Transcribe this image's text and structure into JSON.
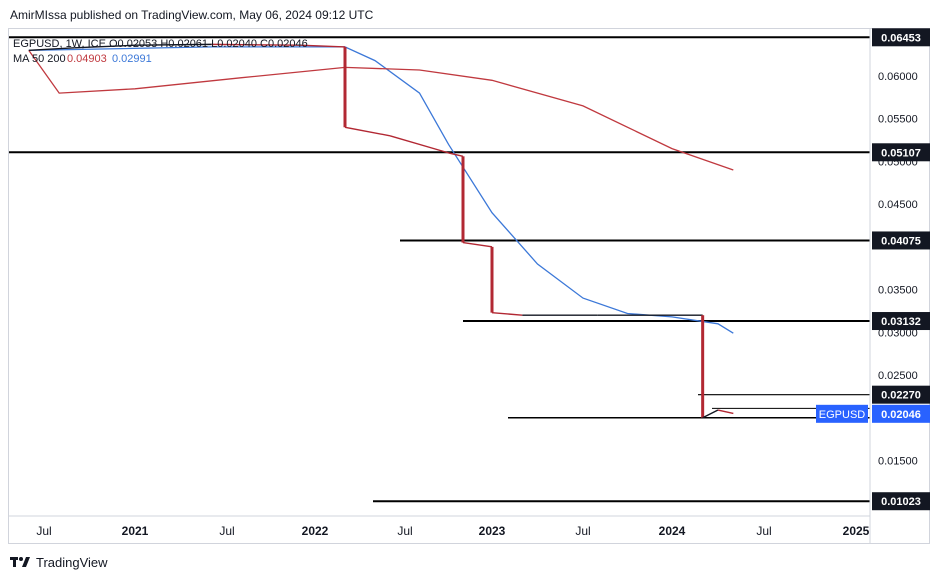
{
  "header": {
    "published_text": "AmirMIssa published on TradingView.com, May 06, 2024 09:12 UTC"
  },
  "footer": {
    "brand": "TradingView",
    "logo_icon": "tradingview-logo-icon"
  },
  "legend": {
    "symbol_line": "EGPUSD, 1W, ICE  O0.02053  H0.02061  L0.02040  C0.02046",
    "ma_label": "MA 50 200",
    "ma_values": [
      "0.04903",
      "0.02991"
    ]
  },
  "colors": {
    "up": "#2962ff",
    "down": "#b22833",
    "ma50": "#3c78d8",
    "ma200": "#c0393f",
    "price_tag": "#2962ff",
    "level_tag": "#131722"
  },
  "chart_data": {
    "type": "line",
    "title": "EGPUSD, 1W, ICE",
    "xlabel": "",
    "ylabel": "",
    "ylim": [
      0.0085,
      0.0655
    ],
    "y_ticks": [
      "0.06000",
      "0.05500",
      "0.05000",
      "0.04500",
      "0.03500",
      "0.03000",
      "0.02500",
      "0.01500"
    ],
    "x_ticks": [
      "Jul",
      "2021",
      "Jul",
      "2022",
      "Jul",
      "2023",
      "Jul",
      "2024",
      "Jul",
      "2025"
    ],
    "x_tick_dates": [
      "2020-07",
      "2021-01",
      "2021-07",
      "2022-01",
      "2022-07",
      "2023-01",
      "2023-07",
      "2024-01",
      "2024-07",
      "2025-01"
    ],
    "ohlc_last": {
      "open": 0.02053,
      "high": 0.02061,
      "low": 0.0204,
      "close": 0.02046
    },
    "current_price_label": "EGPUSD",
    "current_price": "0.02046",
    "horizontal_levels": [
      {
        "value": 0.06453,
        "label": "0.06453"
      },
      {
        "value": 0.05107,
        "label": "0.05107"
      },
      {
        "value": 0.04075,
        "label": "0.04075"
      },
      {
        "value": 0.03132,
        "label": "0.03132"
      },
      {
        "value": 0.0227,
        "label": "0.02270"
      },
      {
        "value": 0.01023,
        "label": "0.01023"
      }
    ],
    "series": [
      {
        "name": "EGPUSD",
        "x": [
          "2020-06",
          "2020-09",
          "2021-01",
          "2021-06",
          "2021-12",
          "2022-03",
          "2022-03",
          "2022-06",
          "2022-10",
          "2022-11",
          "2022-11",
          "2023-01",
          "2023-01",
          "2023-03",
          "2023-08",
          "2024-01",
          "2024-03",
          "2024-03",
          "2024-04",
          "2024-05"
        ],
        "values": [
          0.063,
          0.0633,
          0.0636,
          0.0637,
          0.0636,
          0.0634,
          0.054,
          0.053,
          0.051,
          0.0506,
          0.0405,
          0.04,
          0.0323,
          0.032,
          0.032,
          0.032,
          0.032,
          0.02,
          0.0209,
          0.0205
        ]
      },
      {
        "name": "MA 50",
        "x": [
          "2020-06",
          "2021-06",
          "2022-03",
          "2022-05",
          "2022-08",
          "2022-10",
          "2023-01",
          "2023-04",
          "2023-07",
          "2023-10",
          "2024-01",
          "2024-04",
          "2024-05"
        ],
        "values": [
          0.063,
          0.0634,
          0.0634,
          0.0618,
          0.058,
          0.052,
          0.044,
          0.038,
          0.034,
          0.0322,
          0.0318,
          0.031,
          0.0299
        ]
      },
      {
        "name": "MA 200",
        "x": [
          "2020-06",
          "2020-08",
          "2021-01",
          "2021-08",
          "2022-03",
          "2022-08",
          "2023-01",
          "2023-07",
          "2024-01",
          "2024-05"
        ],
        "values": [
          0.063,
          0.058,
          0.0585,
          0.0598,
          0.061,
          0.0607,
          0.0595,
          0.0565,
          0.0515,
          0.049
        ]
      }
    ]
  }
}
